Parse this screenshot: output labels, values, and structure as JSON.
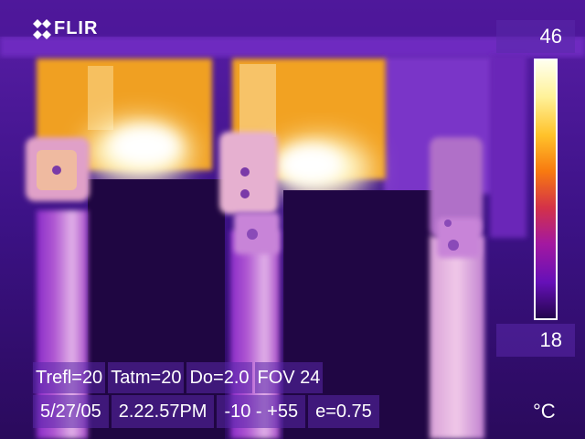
{
  "camera": {
    "brand": "FLIR",
    "logo_icon": "flir-diamond-icon"
  },
  "scale": {
    "max": "46",
    "min": "18",
    "unit": "°C",
    "palette": [
      "#ffffee",
      "#fff29a",
      "#ffc22a",
      "#f87a10",
      "#d43248",
      "#a418a0",
      "#6610b8",
      "#24054e"
    ]
  },
  "parameters": {
    "trefl": "Trefl=20",
    "tatm": "Tatm=20",
    "distance": "Do=2.0",
    "fov": "FOV 24"
  },
  "status": {
    "date": "5/27/05",
    "time": "2.22.57PM",
    "range": "-10 -  +55",
    "emissivity": "e=0.75"
  }
}
